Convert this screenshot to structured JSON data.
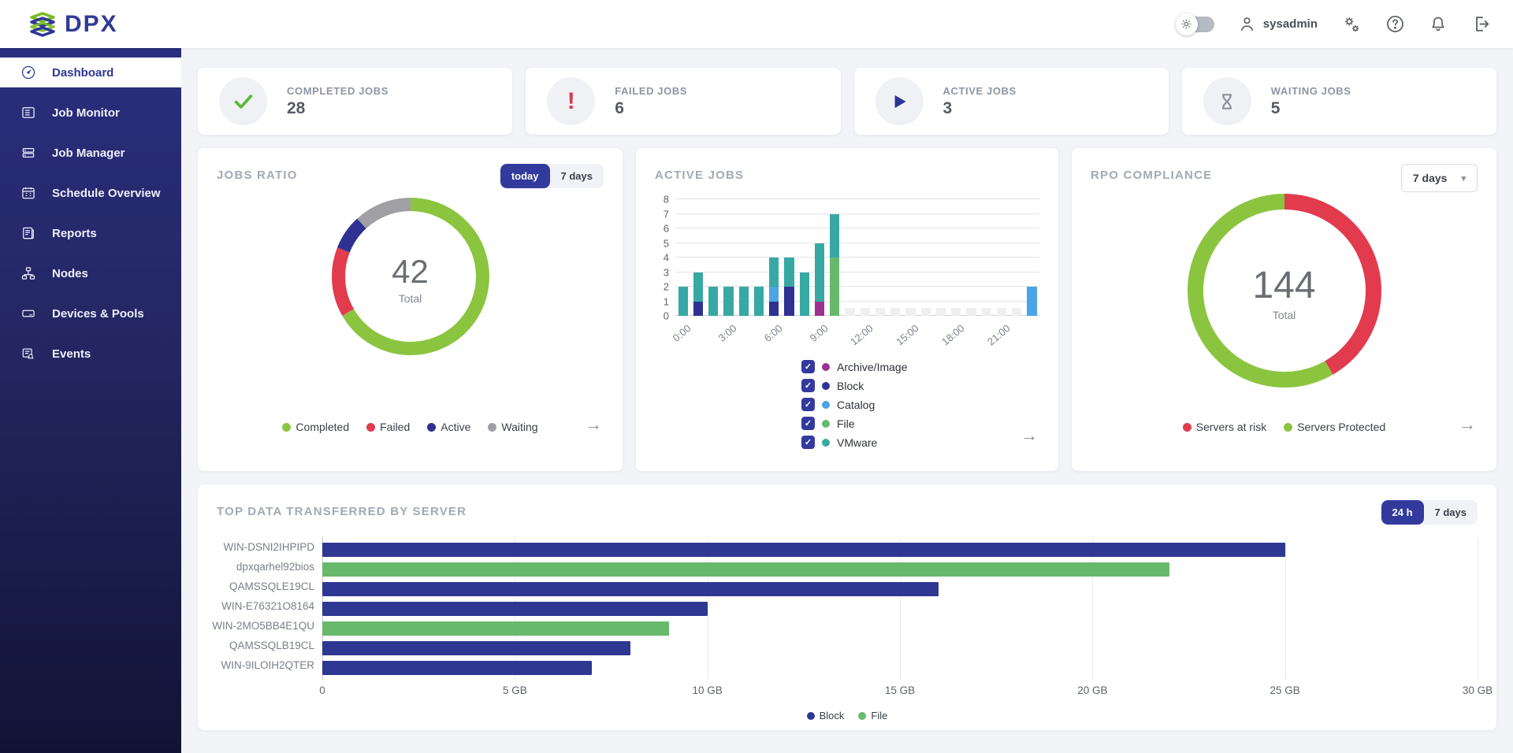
{
  "ui": {
    "arrow": "→",
    "check": "✓",
    "caret": "▾"
  },
  "header": {
    "brand": "DPX",
    "user": {
      "name": "sysadmin"
    }
  },
  "sidebar": {
    "items": [
      {
        "label": "Dashboard",
        "icon": "gauge-icon",
        "active": true
      },
      {
        "label": "Job Monitor",
        "icon": "list-panel-icon",
        "active": false
      },
      {
        "label": "Job Manager",
        "icon": "stacked-rows-icon",
        "active": false
      },
      {
        "label": "Schedule Overview",
        "icon": "calendar-icon",
        "active": false
      },
      {
        "label": "Reports",
        "icon": "report-icon",
        "active": false
      },
      {
        "label": "Nodes",
        "icon": "hierarchy-icon",
        "active": false
      },
      {
        "label": "Devices & Pools",
        "icon": "device-icon",
        "active": false
      },
      {
        "label": "Events",
        "icon": "event-bell-icon",
        "active": false
      }
    ]
  },
  "summary_cards": [
    {
      "id": "completed",
      "label": "COMPLETED JOBS",
      "value": "28",
      "icon": "check-icon",
      "color": "#5CB93C"
    },
    {
      "id": "failed",
      "label": "FAILED JOBS",
      "value": "6",
      "icon": "exclamation-icon",
      "color": "#D93A50"
    },
    {
      "id": "active",
      "label": "ACTIVE JOBS",
      "value": "3",
      "icon": "play-icon",
      "color": "#2E3695"
    },
    {
      "id": "waiting",
      "label": "WAITING JOBS",
      "value": "5",
      "icon": "hourglass-icon",
      "color": "#8a8f98"
    }
  ],
  "jobs_ratio": {
    "title": "JOBS RATIO",
    "range_toggle": {
      "options": [
        "today",
        "7 days"
      ],
      "selected": "today"
    },
    "total": "42",
    "total_label": "Total",
    "chart": {
      "type": "pie",
      "segments": [
        {
          "label": "Completed",
          "value": 28,
          "color": "#8BC540"
        },
        {
          "label": "Failed",
          "value": 6,
          "color": "#E23B4E"
        },
        {
          "label": "Active",
          "value": 3,
          "color": "#2E3192"
        },
        {
          "label": "Waiting",
          "value": 5,
          "color": "#A0A0A4"
        }
      ]
    }
  },
  "active_jobs": {
    "title": "ACTIVE JOBS",
    "chart": {
      "type": "bar",
      "y_max": 8,
      "x_ticks": [
        "0:00",
        "3:00",
        "6:00",
        "9:00",
        "12:00",
        "15:00",
        "18:00",
        "21:00"
      ],
      "placeholder": {
        "color": "#efefef",
        "value": 0.55
      },
      "series": [
        {
          "name": "Archive/Image",
          "color": "#9C3192",
          "checked": true
        },
        {
          "name": "Block",
          "color": "#2E3192",
          "checked": true
        },
        {
          "name": "Catalog",
          "color": "#4DA3E8",
          "checked": true
        },
        {
          "name": "File",
          "color": "#67B96C",
          "checked": true
        },
        {
          "name": "VMware",
          "color": "#38A8A4",
          "checked": true
        }
      ],
      "bars": [
        {
          "hour": "0:00",
          "stacks": [
            {
              "series": "VMware",
              "value": 2
            }
          ]
        },
        {
          "hour": "1:00",
          "stacks": [
            {
              "series": "Block",
              "value": 1
            },
            {
              "series": "VMware",
              "value": 2
            }
          ]
        },
        {
          "hour": "2:00",
          "stacks": [
            {
              "series": "VMware",
              "value": 2
            }
          ]
        },
        {
          "hour": "3:00",
          "stacks": [
            {
              "series": "VMware",
              "value": 2
            }
          ]
        },
        {
          "hour": "4:00",
          "stacks": [
            {
              "series": "VMware",
              "value": 2
            }
          ]
        },
        {
          "hour": "5:00",
          "stacks": [
            {
              "series": "VMware",
              "value": 2
            }
          ]
        },
        {
          "hour": "6:00",
          "stacks": [
            {
              "series": "Block",
              "value": 1
            },
            {
              "series": "Catalog",
              "value": 1
            },
            {
              "series": "VMware",
              "value": 2
            }
          ]
        },
        {
          "hour": "7:00",
          "stacks": [
            {
              "series": "Block",
              "value": 2
            },
            {
              "series": "VMware",
              "value": 2
            }
          ]
        },
        {
          "hour": "8:00",
          "stacks": [
            {
              "series": "VMware",
              "value": 3
            }
          ]
        },
        {
          "hour": "9:00",
          "stacks": [
            {
              "series": "Archive/Image",
              "value": 1
            },
            {
              "series": "VMware",
              "value": 4
            }
          ]
        },
        {
          "hour": "10:00",
          "stacks": [
            {
              "series": "File",
              "value": 4
            },
            {
              "series": "VMware",
              "value": 3
            }
          ]
        },
        {
          "hour": "11:00",
          "stacks": []
        },
        {
          "hour": "12:00",
          "stacks": []
        },
        {
          "hour": "13:00",
          "stacks": []
        },
        {
          "hour": "14:00",
          "stacks": []
        },
        {
          "hour": "15:00",
          "stacks": []
        },
        {
          "hour": "16:00",
          "stacks": []
        },
        {
          "hour": "17:00",
          "stacks": []
        },
        {
          "hour": "18:00",
          "stacks": []
        },
        {
          "hour": "19:00",
          "stacks": []
        },
        {
          "hour": "20:00",
          "stacks": []
        },
        {
          "hour": "21:00",
          "stacks": []
        },
        {
          "hour": "22:00",
          "stacks": []
        },
        {
          "hour": "23:00",
          "stacks": [
            {
              "series": "Catalog",
              "value": 2
            }
          ]
        }
      ]
    }
  },
  "rpo": {
    "title": "RPO COMPLIANCE",
    "dropdown": {
      "value": "7 days"
    },
    "total": "144",
    "total_label": "Total",
    "chart": {
      "type": "pie",
      "segments": [
        {
          "label": "Servers at risk",
          "value": 60,
          "color": "#E23B4E"
        },
        {
          "label": "Servers Protected",
          "value": 84,
          "color": "#8BC540"
        }
      ]
    }
  },
  "top_data": {
    "title": "TOP DATA TRANSFERRED BY SERVER",
    "range_toggle": {
      "options": [
        "24 h",
        "7 days"
      ],
      "selected": "24 h"
    },
    "chart": {
      "type": "bar",
      "x_max_gb": 30,
      "x_ticks": [
        "0",
        "5 GB",
        "10 GB",
        "15 GB",
        "20 GB",
        "25 GB",
        "30 GB"
      ],
      "legend": [
        {
          "label": "Block",
          "color": "#2E3792"
        },
        {
          "label": "File",
          "color": "#67B96C"
        }
      ],
      "servers": [
        {
          "name": "WIN-DSNI2IHPIPD",
          "series": "Block",
          "gb": 25
        },
        {
          "name": "dpxqarhel92bios",
          "series": "File",
          "gb": 22
        },
        {
          "name": "QAMSSQLE19CL",
          "series": "Block",
          "gb": 16
        },
        {
          "name": "WIN-E76321O8164",
          "series": "Block",
          "gb": 10
        },
        {
          "name": "WIN-2MO5BB4E1QU",
          "series": "File",
          "gb": 9
        },
        {
          "name": "QAMSSQLB19CL",
          "series": "Block",
          "gb": 8
        },
        {
          "name": "WIN-9ILOIH2QTER",
          "series": "Block",
          "gb": 7
        }
      ]
    }
  }
}
